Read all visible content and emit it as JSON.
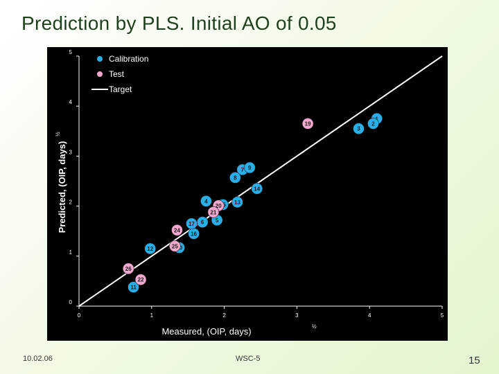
{
  "slide": {
    "title": "Prediction by PLS. Initial AO of 0.05",
    "footer_date": "10.02.06",
    "footer_center": "WSC-5",
    "page_number": "15"
  },
  "chart_data": {
    "type": "scatter",
    "xlabel": "Measured, (OIP, days)",
    "xlabel_exp": "½",
    "ylabel": "Predicted, (OIP, days)",
    "ylabel_exp": "½",
    "xlim": [
      0,
      5
    ],
    "ylim": [
      0,
      5
    ],
    "x_ticks": [
      "0",
      "1",
      "2",
      "3",
      "4",
      "5"
    ],
    "y_ticks": [
      "0",
      "1",
      "2",
      "3",
      "4",
      "5"
    ],
    "legend_position": "top-left",
    "colors": {
      "background": "#000000",
      "axis": "#ffffff",
      "calibration": "#29aee8",
      "test": "#f4a8cf",
      "target": "#ffffff"
    },
    "legend": [
      {
        "key": "calibration",
        "label": "Calibration"
      },
      {
        "key": "test",
        "label": "Test"
      },
      {
        "key": "target",
        "label": "Target"
      }
    ],
    "target_line": [
      [
        0,
        0
      ],
      [
        5,
        5
      ]
    ],
    "series": [
      {
        "name": "Calibration",
        "key": "calibration",
        "points": [
          {
            "label": "1",
            "x": 4.1,
            "y": 3.75
          },
          {
            "label": "2",
            "x": 4.05,
            "y": 3.65
          },
          {
            "label": "3",
            "x": 3.85,
            "y": 3.55
          },
          {
            "label": "4",
            "x": 1.75,
            "y": 2.1
          },
          {
            "label": "5",
            "x": 1.9,
            "y": 1.72
          },
          {
            "label": "6",
            "x": 1.7,
            "y": 1.68
          },
          {
            "label": "7",
            "x": 2.25,
            "y": 2.73
          },
          {
            "label": "8",
            "x": 2.15,
            "y": 2.57
          },
          {
            "label": "9",
            "x": 2.35,
            "y": 2.77
          },
          {
            "label": "10",
            "x": 1.38,
            "y": 1.17
          },
          {
            "label": "11",
            "x": 0.75,
            "y": 0.38
          },
          {
            "label": "12",
            "x": 0.98,
            "y": 1.15
          },
          {
            "label": "13",
            "x": 2.18,
            "y": 2.08
          },
          {
            "label": "14",
            "x": 2.45,
            "y": 2.35
          },
          {
            "label": "15",
            "x": 1.98,
            "y": 2.03
          },
          {
            "label": "16",
            "x": 1.58,
            "y": 1.45
          },
          {
            "label": "17",
            "x": 1.55,
            "y": 1.65
          }
        ]
      },
      {
        "name": "Test",
        "key": "test",
        "points": [
          {
            "label": "19",
            "x": 3.15,
            "y": 3.65
          },
          {
            "label": "20",
            "x": 1.92,
            "y": 2.01
          },
          {
            "label": "21",
            "x": 1.85,
            "y": 1.88
          },
          {
            "label": "22",
            "x": 0.85,
            "y": 0.53
          },
          {
            "label": "24",
            "x": 1.35,
            "y": 1.52
          },
          {
            "label": "25",
            "x": 1.32,
            "y": 1.2
          },
          {
            "label": "26",
            "x": 0.68,
            "y": 0.75
          }
        ]
      }
    ]
  }
}
